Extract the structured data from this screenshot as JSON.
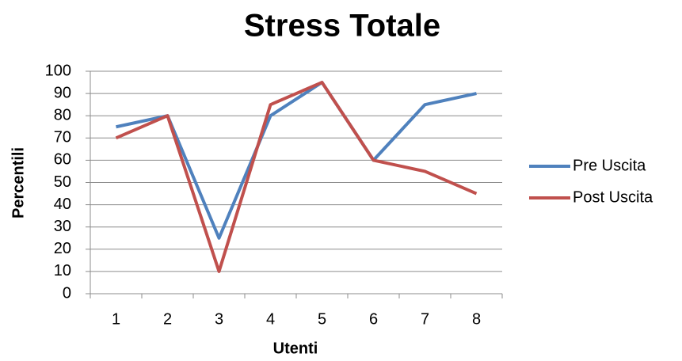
{
  "chart_data": {
    "type": "line",
    "title": "Stress Totale",
    "x_label": "Utenti",
    "y_label": "Percentili",
    "categories": [
      "1",
      "2",
      "3",
      "4",
      "5",
      "6",
      "7",
      "8"
    ],
    "series": [
      {
        "name": "Pre Uscita",
        "color": "#4f81bd",
        "values": [
          75,
          80,
          25,
          80,
          95,
          60,
          85,
          90
        ]
      },
      {
        "name": "Post Uscita",
        "color": "#c0504d",
        "values": [
          70,
          80,
          10,
          85,
          95,
          60,
          55,
          45
        ]
      }
    ],
    "ylim": [
      0,
      100
    ],
    "yticks": [
      0,
      10,
      20,
      30,
      40,
      50,
      60,
      70,
      80,
      90,
      100
    ],
    "grid": true,
    "legend": "right"
  }
}
